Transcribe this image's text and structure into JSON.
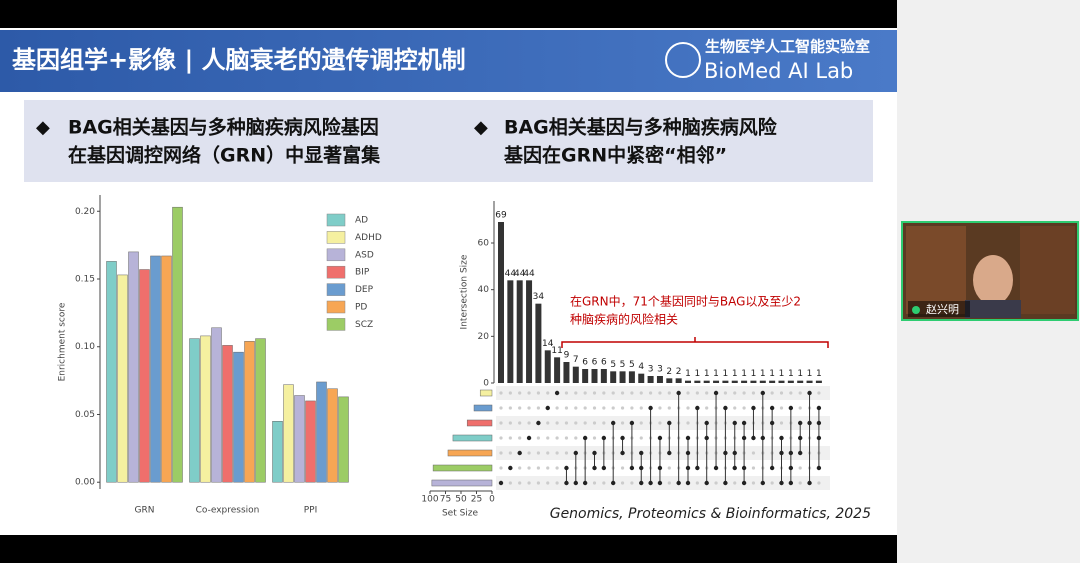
{
  "header": {
    "title": "基因组学+影像 | 人脑衰老的遗传调控机制",
    "lab_cn": "生物医学人工智能实验室",
    "lab_en": "BioMed AI Lab"
  },
  "bullets": [
    [
      "BAG相关基因与多种脑疾病风险基因",
      "在基因调控网络（GRN）中显著富集"
    ],
    [
      "BAG相关基因与多种脑疾病风险",
      "基因在GRN中紧密“相邻”"
    ]
  ],
  "participant": {
    "name": "赵兴明"
  },
  "citation": "Genomics, Proteomics & Bioinformatics, 2025",
  "chart_data": [
    {
      "type": "bar",
      "ylabel": "Enrichment score",
      "categories": [
        "GRN",
        "Co-expression",
        "PPI"
      ],
      "series": [
        {
          "name": "AD",
          "color": "#7fcdc8",
          "values": [
            0.163,
            0.106,
            0.045
          ]
        },
        {
          "name": "ADHD",
          "color": "#f5f0a0",
          "values": [
            0.153,
            0.108,
            0.072
          ]
        },
        {
          "name": "ASD",
          "color": "#b7b3d8",
          "values": [
            0.17,
            0.114,
            0.064
          ]
        },
        {
          "name": "BIP",
          "color": "#ef6f6c",
          "values": [
            0.157,
            0.101,
            0.06
          ]
        },
        {
          "name": "DEP",
          "color": "#6a9ccf",
          "values": [
            0.167,
            0.096,
            0.074
          ]
        },
        {
          "name": "PD",
          "color": "#f7a654",
          "values": [
            0.167,
            0.104,
            0.069
          ]
        },
        {
          "name": "SCZ",
          "color": "#9ccc65",
          "values": [
            0.203,
            0.106,
            0.063
          ]
        }
      ],
      "ylim": [
        -0.005,
        0.212
      ],
      "yticks": [
        {
          "value": 0,
          "label": "0.00"
        },
        {
          "value": 0.05,
          "label": "0.05"
        },
        {
          "value": 0.1,
          "label": "0.10"
        },
        {
          "value": 0.15,
          "label": "0.15"
        },
        {
          "value": 0.2,
          "label": "0.20"
        }
      ],
      "legend": "top-right"
    },
    {
      "type": "upset",
      "ylabel": "Intersection Size",
      "xlabel": "Set Size",
      "values": [
        69,
        44,
        44,
        44,
        34,
        14,
        11,
        9,
        7,
        6,
        6,
        6,
        5,
        5,
        5,
        4,
        3,
        3,
        2,
        2,
        1,
        1,
        1,
        1,
        1,
        1,
        1,
        1,
        1,
        1,
        1,
        1,
        1,
        1,
        1
      ],
      "intersections": [
        [
          6
        ],
        [
          5
        ],
        [
          4
        ],
        [
          3
        ],
        [
          2
        ],
        [
          1
        ],
        [
          0
        ],
        [
          5,
          6
        ],
        [
          4,
          6
        ],
        [
          3,
          6
        ],
        [
          4,
          5
        ],
        [
          3,
          5
        ],
        [
          2,
          6
        ],
        [
          3,
          4
        ],
        [
          2,
          5
        ],
        [
          4,
          5,
          6
        ],
        [
          1,
          6
        ],
        [
          3,
          5,
          6
        ],
        [
          2,
          4
        ],
        [
          0,
          6
        ],
        [
          3,
          4,
          5,
          6
        ],
        [
          1,
          5
        ],
        [
          2,
          3,
          6
        ],
        [
          0,
          5
        ],
        [
          1,
          4,
          6
        ],
        [
          2,
          4,
          5
        ],
        [
          2,
          3,
          5,
          6
        ],
        [
          1,
          3
        ],
        [
          0,
          3,
          6
        ],
        [
          1,
          2,
          5
        ],
        [
          3,
          4,
          6
        ],
        [
          1,
          4,
          5,
          6
        ],
        [
          2,
          3,
          4
        ],
        [
          0,
          2,
          6
        ],
        [
          1,
          2,
          3,
          5
        ]
      ],
      "color": "#333333",
      "ylim": [
        0,
        78
      ],
      "yticks": [
        0,
        20,
        40,
        60
      ],
      "sets": {
        "colors": [
          "#f5f0a0",
          "#6a9ccf",
          "#ef6f6c",
          "#7fcdc8",
          "#f7a654",
          "#9ccc65",
          "#b7b3d8"
        ],
        "sizes": [
          19,
          29,
          40,
          63,
          71,
          95,
          97
        ]
      },
      "xlim": [
        100,
        0
      ],
      "xticks": [
        100,
        75,
        50,
        25,
        0
      ],
      "annotation": [
        "在GRN中，71个基因同时与BAG以及至少2",
        "种脑疾病的风险相关"
      ]
    }
  ]
}
